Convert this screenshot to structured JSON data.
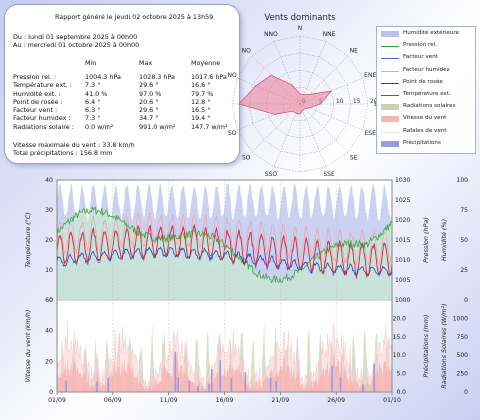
{
  "report": {
    "title": "Rapport généré le jeudi 02 octobre 2025 à 13h59",
    "from": "Du : lundi 01 septembre 2025 à 00h00",
    "to": "Au : mercredi 01 octobre 2025 à 00h00",
    "headers": [
      "",
      "Min",
      "Max",
      "Moyenne"
    ],
    "rows": [
      [
        "Pression rel. :",
        "1004.3 hPa",
        "1028.3 hPa",
        "1017.6 hPa"
      ],
      [
        "Température ext. :",
        "7.3 °",
        "29.6 °",
        "16.6 °"
      ],
      [
        "Humidité ext. :",
        "41.0 %",
        "97.0 %",
        "79.7 %"
      ],
      [
        "Point de rosée :",
        "6.4 °",
        "20.6 °",
        "12.8 °"
      ],
      [
        "Facteur vent :",
        "6.3 °",
        "29.6 °",
        "16.5 °"
      ],
      [
        "Facteur humidex :",
        "7.3 °",
        "34.7 °",
        "19.4 °"
      ],
      [
        "Radiations solaire :",
        "0.0 w/m²",
        "991.0 w/m²",
        "147.7 w/m²"
      ]
    ],
    "max_wind": "Vitesse maximale du vent : 33.8 km/h",
    "total_precip": "Total précipitations : 156.8 mm"
  },
  "legend": [
    {
      "label": "Humidité extérieure",
      "color": "#b9c3ec",
      "kind": "fill"
    },
    {
      "label": "Pression rel.",
      "color": "#3aa83a",
      "kind": "line"
    },
    {
      "label": "Facteur vent",
      "color": "#5a63d8",
      "kind": "line"
    },
    {
      "label": "Facteur humidex",
      "color": "#f2a0a8",
      "kind": "line"
    },
    {
      "label": "Point de rosée",
      "color": "#2a3ac8",
      "kind": "line"
    },
    {
      "label": "Température ext.",
      "color": "#e82828",
      "kind": "line"
    },
    {
      "label": "Radiations solaires",
      "color": "#c8d2b4",
      "kind": "fill"
    },
    {
      "label": "Vitesse du vent",
      "color": "#f6b4b4",
      "kind": "fill"
    },
    {
      "label": "Rafales de vent",
      "color": "#e6e6e6",
      "kind": "line"
    },
    {
      "label": "Précipitations",
      "color": "#9a9ae6",
      "kind": "fill"
    }
  ],
  "chart_data": [
    {
      "type": "radar",
      "title": "Vents dominants",
      "directions": [
        "N",
        "NNE",
        "NE",
        "ENE",
        "E",
        "ESE",
        "SE",
        "SSE",
        "S",
        "SSO",
        "SO",
        "OSO",
        "O",
        "ONO",
        "NO",
        "NNO"
      ],
      "values": [
        3,
        3,
        4,
        10,
        6,
        3,
        2,
        2,
        3,
        3,
        3,
        8,
        18,
        14,
        12,
        6
      ],
      "rings": [
        0,
        5,
        10,
        15,
        20
      ],
      "ring_labels": [
        "0",
        "5",
        "10",
        "15",
        "20"
      ]
    },
    {
      "type": "line",
      "x_ticks": [
        "01/09",
        "06/09",
        "11/09",
        "16/09",
        "21/09",
        "26/09",
        "01/10"
      ],
      "top_panel": {
        "ylabel_left": "Température (°C)",
        "ylabel_right1": "Pression (hPa)",
        "ylabel_right2": "Humidité (%)",
        "ylim_left": [
          0,
          40
        ],
        "yticks_left": [
          "0",
          "10",
          "20",
          "30",
          "40"
        ],
        "ylim_right1": [
          1000,
          1030
        ],
        "yticks_right1": [
          "1000",
          "1005",
          "1010",
          "1015",
          "1020",
          "1025",
          "1030"
        ],
        "ylim_right2": [
          0,
          100
        ],
        "yticks_right2": [
          "0",
          "25",
          "50",
          "75",
          "100"
        ],
        "series": [
          {
            "name": "Température ext.",
            "axis": "left",
            "mean": 16.6,
            "amp": 5,
            "min": 7.3,
            "max": 29.6
          },
          {
            "name": "Point de rosée",
            "axis": "left",
            "mean": 12.8,
            "amp": 2,
            "min": 6.4,
            "max": 20.6
          },
          {
            "name": "Facteur humidex",
            "axis": "left",
            "mean": 19.4,
            "amp": 6,
            "min": 7.3,
            "max": 34.7
          },
          {
            "name": "Facteur vent",
            "axis": "left",
            "mean": 16.5,
            "amp": 5,
            "min": 6.3,
            "max": 29.6
          },
          {
            "name": "Pression rel.",
            "axis": "right1",
            "mean": 1017.6,
            "min": 1004.3,
            "max": 1028.3
          },
          {
            "name": "Humidité extérieure",
            "axis": "right2",
            "mean": 79.7,
            "min": 41.0,
            "max": 97.0
          }
        ]
      },
      "bottom_panel": {
        "ylabel_left": "Vitesse du vent (km/h)",
        "ylabel_right1": "Précipitations (mm)",
        "ylabel_right2": "Radiations Solaires (W/m²)",
        "ylim_left": [
          0,
          60
        ],
        "yticks_left": [
          "0",
          "20",
          "40",
          "60"
        ],
        "ylim_right1": [
          0,
          25
        ],
        "yticks_right1": [
          "0.0",
          "5.0",
          "10.0",
          "15.0",
          "20.0"
        ],
        "ylim_right2": [
          0,
          1250
        ],
        "yticks_right2": [
          "0",
          "250",
          "500",
          "750",
          "1000"
        ],
        "series": [
          {
            "name": "Vitesse du vent",
            "axis": "left",
            "max": 33.8
          },
          {
            "name": "Rafales de vent",
            "axis": "left",
            "max": 57
          },
          {
            "name": "Radiations solaires",
            "axis": "right2",
            "max": 991.0
          },
          {
            "name": "Précipitations",
            "axis": "right1",
            "total": 156.8
          }
        ]
      }
    }
  ]
}
